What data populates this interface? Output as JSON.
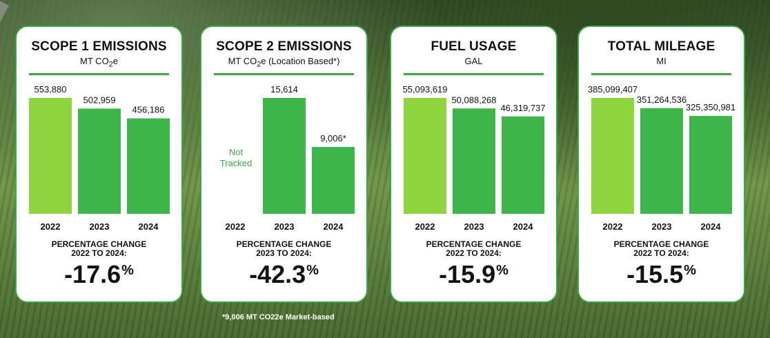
{
  "cards": [
    {
      "title": "SCOPE 1 EMISSIONS",
      "subtitle_pre": "MT CO",
      "subtitle_sub": "2",
      "subtitle_post": "e",
      "pct_label_1": "PERCENTAGE CHANGE",
      "pct_label_2": "2022 TO 2024:",
      "pct_number": "-17.6",
      "pct_symbol": "%"
    },
    {
      "title": "SCOPE 2 EMISSIONS",
      "subtitle_pre": "MT CO",
      "subtitle_sub": "2",
      "subtitle_post": "e (Location Based*)",
      "not_tracked_1": "Not",
      "not_tracked_2": "Tracked",
      "pct_label_1": "PERCENTAGE CHANGE",
      "pct_label_2": "2023 TO 2024:",
      "pct_number": "-42.3",
      "pct_symbol": "%"
    },
    {
      "title": "FUEL USAGE",
      "subtitle_pre": "GAL",
      "subtitle_sub": "",
      "subtitle_post": "",
      "pct_label_1": "PERCENTAGE CHANGE",
      "pct_label_2": "2022 TO 2024:",
      "pct_number": "-15.9",
      "pct_symbol": "%"
    },
    {
      "title": "TOTAL MILEAGE",
      "subtitle_pre": "MI",
      "subtitle_sub": "",
      "subtitle_post": "",
      "pct_label_1": "PERCENTAGE CHANGE",
      "pct_label_2": "2022 TO 2024:",
      "pct_number": "-15.5",
      "pct_symbol": "%"
    }
  ],
  "footnote": "*9,006 MT CO22e Market-based",
  "colors": {
    "bar_2022": "#8fd43f",
    "bar_other": "#3db54a",
    "accent": "#3aa845"
  },
  "chart_data": [
    {
      "type": "bar",
      "title": "SCOPE 1 EMISSIONS",
      "categories": [
        "2022",
        "2023",
        "2024"
      ],
      "values": [
        553880,
        502959,
        456186
      ],
      "value_labels": [
        "553,880",
        "502,959",
        "456,186"
      ],
      "ylabel": "MT CO2e"
    },
    {
      "type": "bar",
      "title": "SCOPE 2 EMISSIONS",
      "categories": [
        "2022",
        "2023",
        "2024"
      ],
      "values": [
        null,
        15614,
        9006
      ],
      "value_labels": [
        "",
        "15,614",
        "9,006*"
      ],
      "ylabel": "MT CO2e (Location Based*)"
    },
    {
      "type": "bar",
      "title": "FUEL USAGE",
      "categories": [
        "2022",
        "2023",
        "2024"
      ],
      "values": [
        55093619,
        50088268,
        46319737
      ],
      "value_labels": [
        "55,093,619",
        "50,088,268",
        "46,319,737"
      ],
      "ylabel": "GAL"
    },
    {
      "type": "bar",
      "title": "TOTAL MILEAGE",
      "categories": [
        "2022",
        "2023",
        "2024"
      ],
      "values": [
        385099407,
        351264536,
        325350981
      ],
      "value_labels": [
        "385,099,407",
        "351,264,536",
        "325,350,981"
      ],
      "ylabel": "MI"
    }
  ]
}
